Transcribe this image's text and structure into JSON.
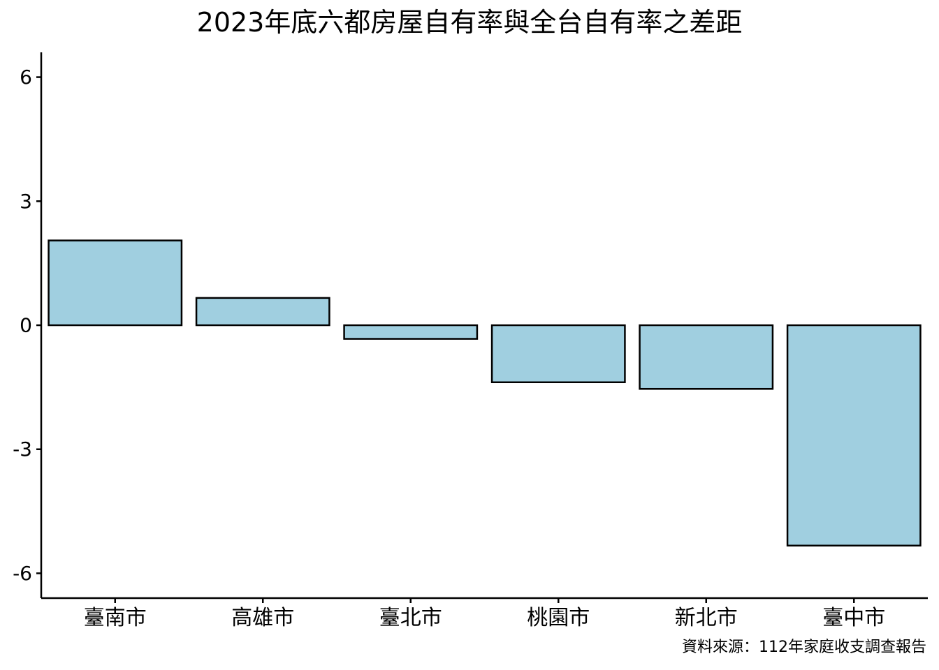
{
  "chart_data": {
    "type": "bar",
    "title": "2023年底六都房屋自有率與全台自有率之差距",
    "caption": "資料來源：112年家庭收支調查報告",
    "xlabel": "",
    "ylabel": "",
    "categories": [
      "臺南市",
      "高雄市",
      "臺北市",
      "桃園市",
      "新北市",
      "臺中市"
    ],
    "values": [
      2.05,
      0.66,
      -0.33,
      -1.38,
      -1.54,
      -5.33
    ],
    "ylim": [
      -6.6,
      6.6
    ],
    "yticks": [
      -6,
      -3,
      0,
      3,
      6
    ],
    "ytick_labels": [
      "-6",
      "-3",
      "0",
      "3",
      "6"
    ],
    "grid": false,
    "legend": "none",
    "colors": {
      "bar_fill": "#a0cfe0",
      "bar_stroke": "#000000",
      "axis": "#000000",
      "text": "#000000",
      "background": "#ffffff"
    }
  }
}
